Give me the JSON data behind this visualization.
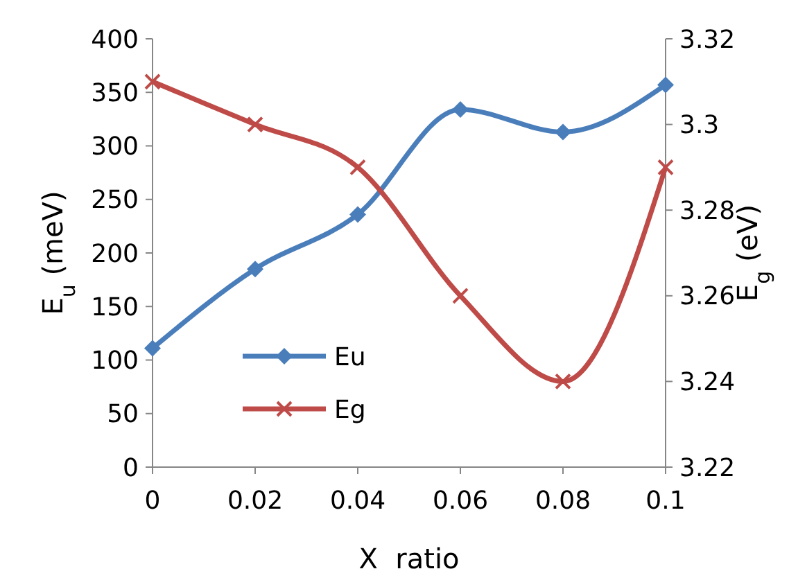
{
  "chart_data": {
    "type": "line",
    "xlabel": "X  ratio",
    "ylabel": "E$_{u}$ (meV)",
    "y2label": "E$_{g}$ (eV)",
    "x": [
      0,
      0.02,
      0.04,
      0.06,
      0.08,
      0.1
    ],
    "xlim": [
      0,
      0.1
    ],
    "xticks": [
      0,
      0.02,
      0.04,
      0.06,
      0.08,
      0.1
    ],
    "ylim": [
      0,
      400
    ],
    "yticks": [
      0,
      50,
      100,
      150,
      200,
      250,
      300,
      350,
      400
    ],
    "y2lim": [
      3.22,
      3.32
    ],
    "y2ticks": [
      3.22,
      3.24,
      3.26,
      3.28,
      3.3,
      3.32
    ],
    "series": [
      {
        "name": "Eu",
        "color": "#4a7ebb",
        "values": [
          111,
          185,
          236,
          334,
          313,
          357
        ],
        "marker": "diamond"
      },
      {
        "name": "Eg",
        "color": "#be4b48",
        "values": [
          3.31,
          3.3,
          3.29,
          3.26,
          3.24,
          3.29
        ],
        "axis": "y2",
        "marker": "cross"
      }
    ],
    "grid": false,
    "legend": "bottom left",
    "line_style": "solid"
  }
}
